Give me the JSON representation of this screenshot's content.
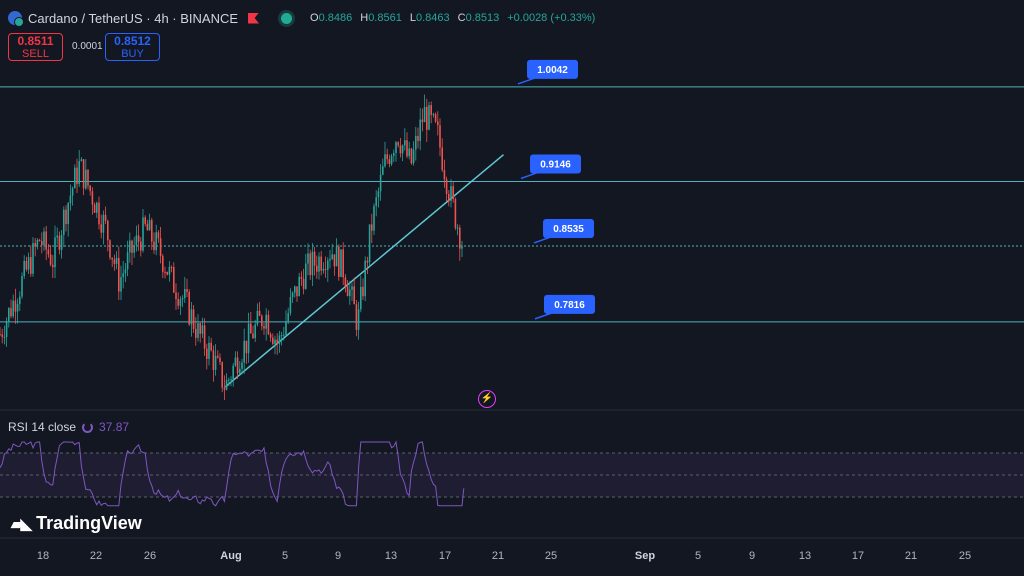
{
  "header": {
    "title": "Cardano / TetherUS · 4h · BINANCE",
    "ohlc": {
      "o_label": "O",
      "o": "0.8486",
      "h_label": "H",
      "h": "0.8561",
      "l_label": "L",
      "l": "0.8463",
      "c_label": "C",
      "c": "0.8513",
      "change": "+0.0028 (+0.33%)"
    }
  },
  "trade": {
    "sell_price": "0.8511",
    "sell_label": "SELL",
    "spread": "0.0001",
    "buy_price": "0.8512",
    "buy_label": "BUY"
  },
  "rsi": {
    "label": "RSI 14 close",
    "value": "37.87"
  },
  "brand": {
    "name": "TradingView"
  },
  "colors": {
    "up": "#26a69a",
    "down": "#ef5350",
    "level": "#4fb3bf",
    "rsi": "#7e57c2",
    "callout": "#2962ff",
    "trend": "#5fc8d4"
  },
  "icons": {
    "exchange": "cardano-coin-icon",
    "flag": "flag-icon",
    "status": "market-open-dot-icon",
    "rsi": "indicator-settings-icon",
    "alert": "lightning-icon"
  },
  "chart_data": {
    "type": "candlestick",
    "symbol": "Cardano / TetherUS",
    "interval": "4h",
    "exchange": "BINANCE",
    "ylim": [
      0.7,
      1.06
    ],
    "levels": [
      1.0042,
      0.9146,
      0.8535,
      0.7816
    ],
    "trendline": {
      "from": [
        "Aug 2",
        0.72
      ],
      "to": [
        "Aug 23",
        0.94
      ]
    },
    "x_ticks": [
      "18",
      "22",
      "26",
      "Aug",
      "5",
      "9",
      "13",
      "17",
      "21",
      "25",
      "Sep",
      "5",
      "9",
      "13",
      "17",
      "21",
      "25"
    ],
    "x_major": [
      "Aug",
      "Sep"
    ],
    "close_path": [
      [
        "Jul 16",
        0.77
      ],
      [
        "Jul 17",
        0.8
      ],
      [
        "Jul 18",
        0.83
      ],
      [
        "Jul 19",
        0.86
      ],
      [
        "Jul 20",
        0.84
      ],
      [
        "Jul 21",
        0.89
      ],
      [
        "Jul 22",
        0.93
      ],
      [
        "Jul 23",
        0.9
      ],
      [
        "Jul 24",
        0.87
      ],
      [
        "Jul 25",
        0.82
      ],
      [
        "Jul 26",
        0.85
      ],
      [
        "Jul 27",
        0.87
      ],
      [
        "Jul 28",
        0.85
      ],
      [
        "Jul 29",
        0.82
      ],
      [
        "Jul 30",
        0.8
      ],
      [
        "Jul 31",
        0.77
      ],
      [
        "Aug 1",
        0.75
      ],
      [
        "Aug 2",
        0.72
      ],
      [
        "Aug 3",
        0.75
      ],
      [
        "Aug 4",
        0.77
      ],
      [
        "Aug 5",
        0.79
      ],
      [
        "Aug 6",
        0.76
      ],
      [
        "Aug 7",
        0.8
      ],
      [
        "Aug 8",
        0.83
      ],
      [
        "Aug 9",
        0.84
      ],
      [
        "Aug 10",
        0.85
      ],
      [
        "Aug 11",
        0.83
      ],
      [
        "Aug 12",
        0.78
      ],
      [
        "Aug 13",
        0.87
      ],
      [
        "Aug 14",
        0.93
      ],
      [
        "Aug 15",
        0.96
      ],
      [
        "Aug 16",
        0.93
      ],
      [
        "Aug 17",
        0.98
      ],
      [
        "Aug 18",
        0.96
      ],
      [
        "Aug 19",
        0.9
      ],
      [
        "Aug 20",
        0.8513
      ]
    ],
    "rsi_range": [
      0,
      100
    ],
    "rsi_bands": [
      70,
      50,
      30
    ],
    "rsi_last": 37.87
  }
}
